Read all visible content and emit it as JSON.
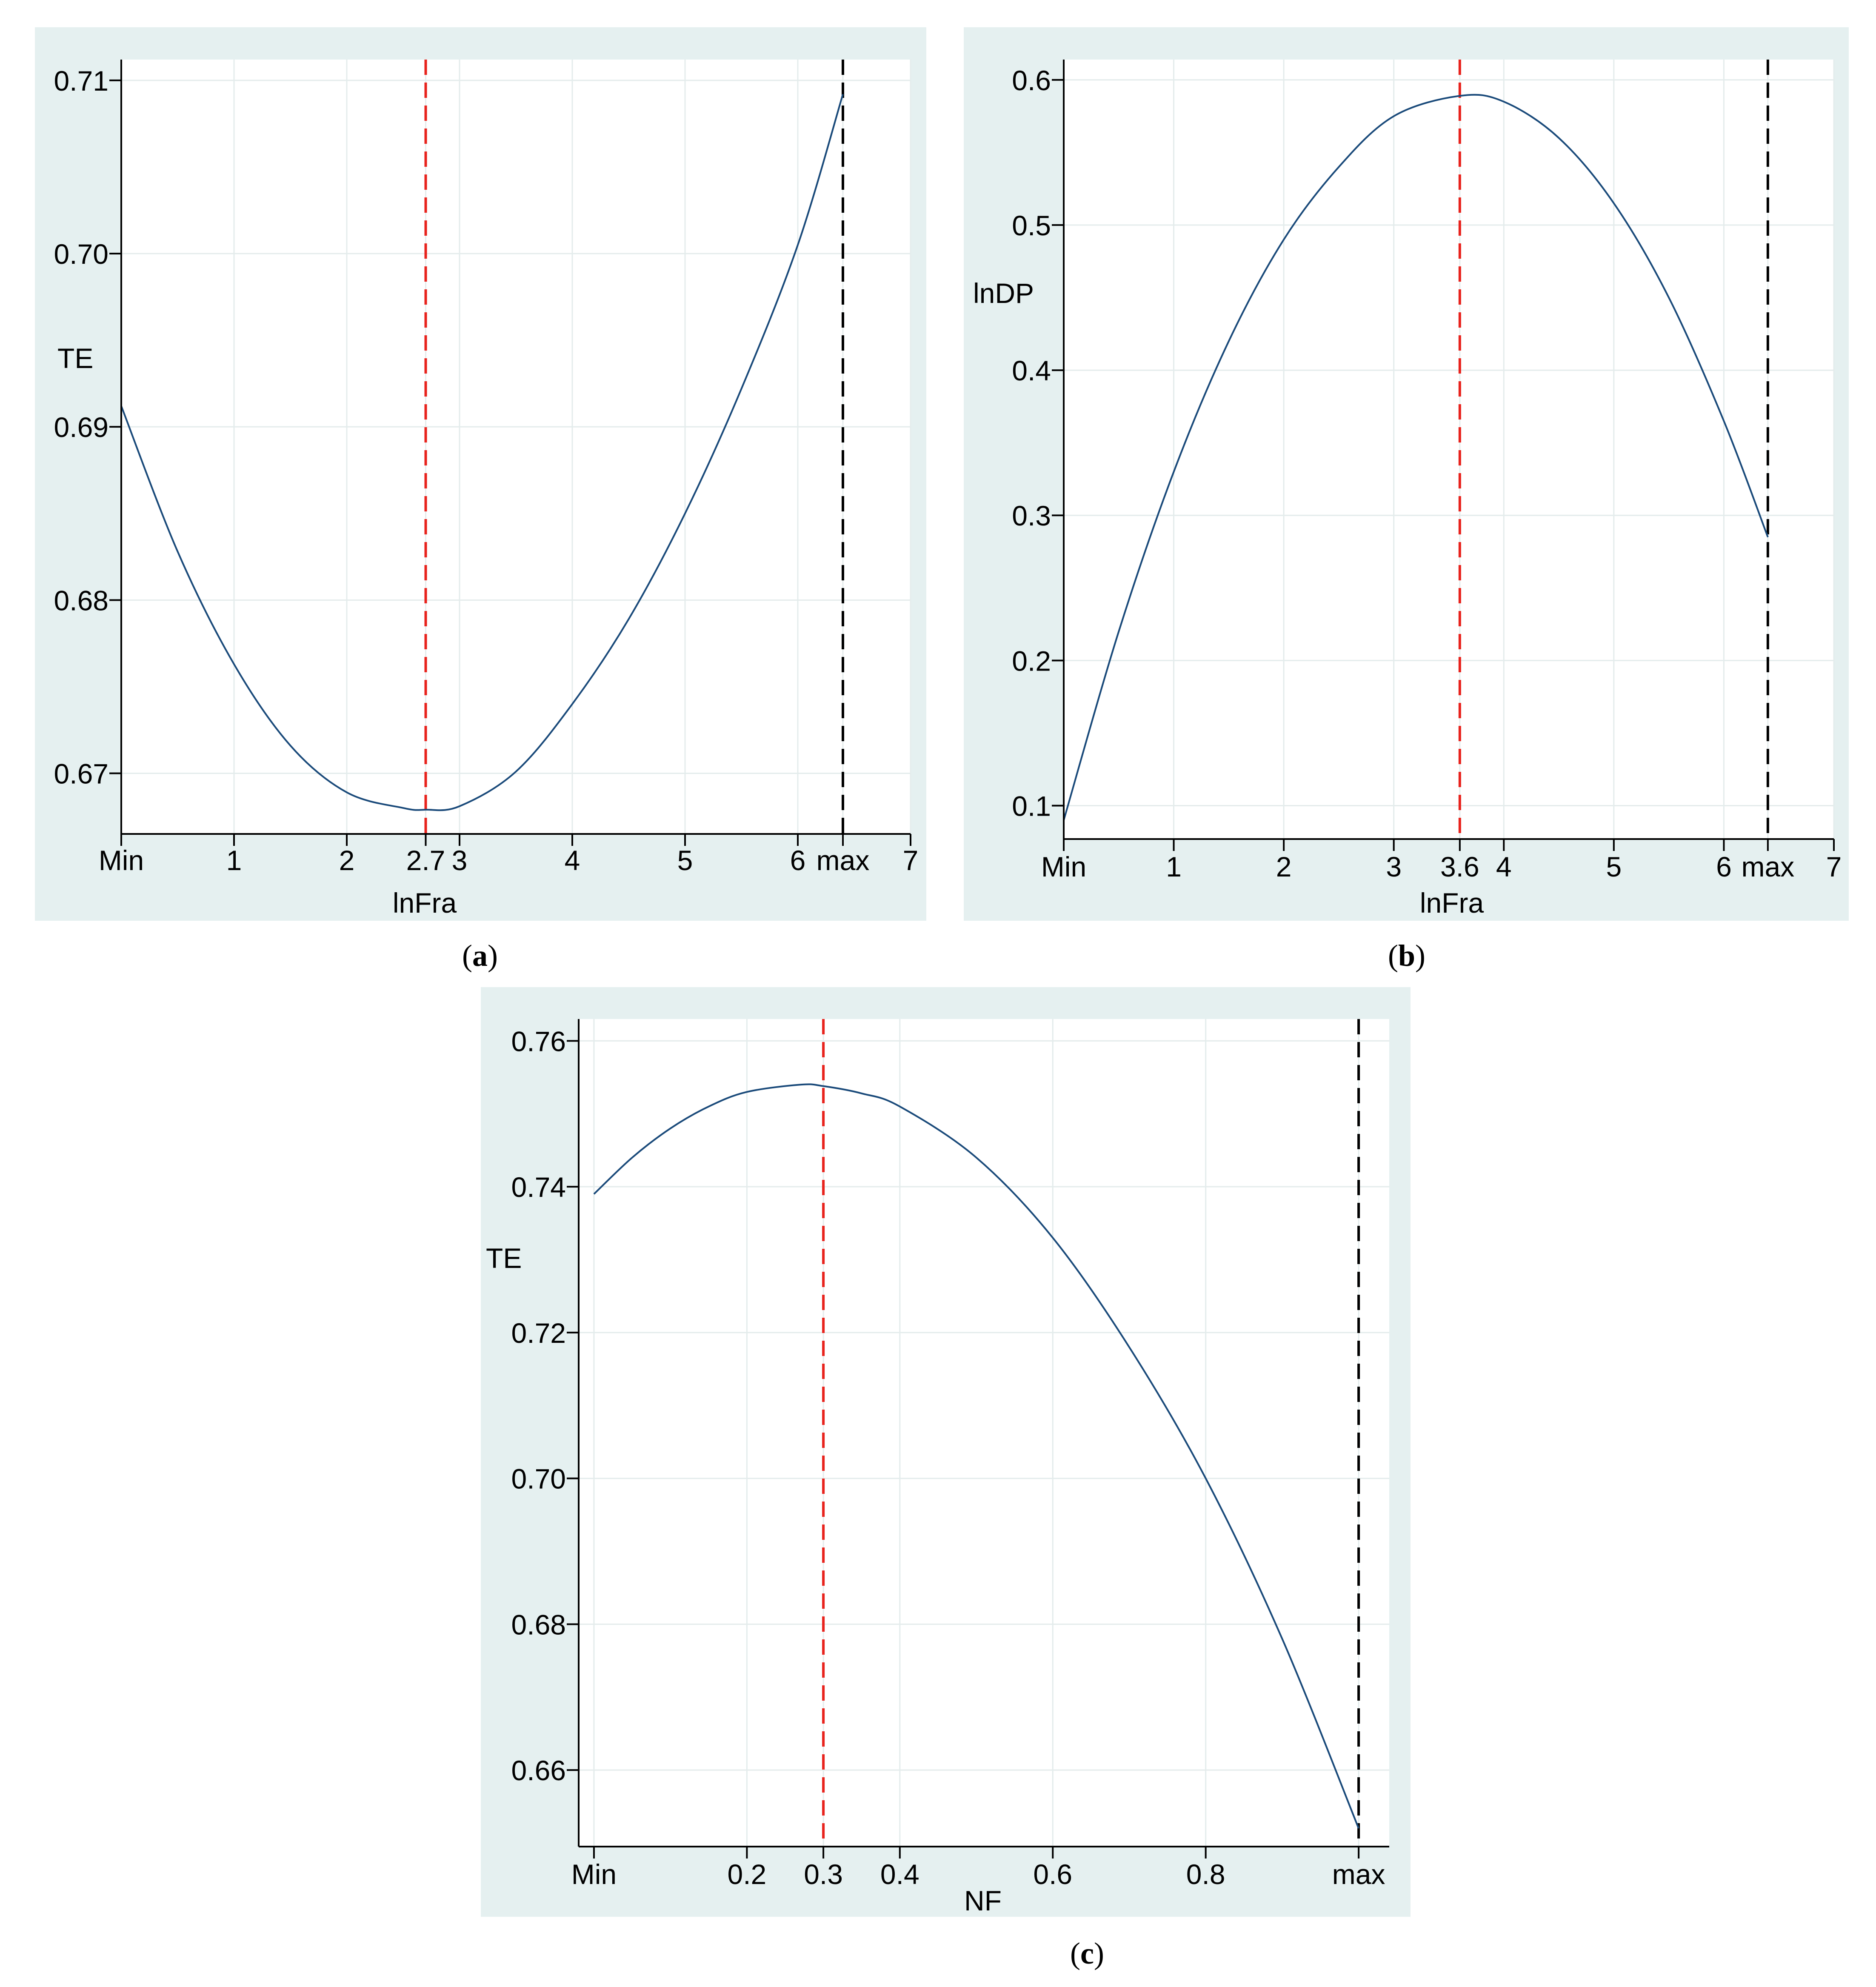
{
  "chart_data": [
    {
      "id": "a",
      "type": "line",
      "caption": "(a)",
      "caption_letter": "a",
      "xlabel": "lnFra",
      "ylabel": "TE",
      "xlim": [
        0,
        7
      ],
      "ylim": [
        0.6665,
        0.7112
      ],
      "xticks": [
        {
          "value": 0,
          "label": "Min"
        },
        {
          "value": 1,
          "label": "1"
        },
        {
          "value": 2,
          "label": "2"
        },
        {
          "value": 2.7,
          "label": "2.7"
        },
        {
          "value": 3,
          "label": "3"
        },
        {
          "value": 4,
          "label": "4"
        },
        {
          "value": 5,
          "label": "5"
        },
        {
          "value": 6,
          "label": "6"
        },
        {
          "value": 6.4,
          "label": "max"
        },
        {
          "value": 7,
          "label": "7"
        }
      ],
      "yticks": [
        {
          "value": 0.67,
          "label": "0.67"
        },
        {
          "value": 0.68,
          "label": "0.68"
        },
        {
          "value": 0.69,
          "label": "0.69"
        },
        {
          "value": 0.7,
          "label": "0.70"
        },
        {
          "value": 0.71,
          "label": "0.71"
        }
      ],
      "grid": true,
      "vlines": [
        {
          "x": 2.7,
          "color": "#e8231d",
          "style": "dashed"
        },
        {
          "x": 6.4,
          "color": "#000000",
          "style": "dashed"
        }
      ],
      "series": [
        {
          "values": [
            [
              0.0,
              0.6912
            ],
            [
              0.5,
              0.6828
            ],
            [
              1.0,
              0.6763
            ],
            [
              1.5,
              0.6716
            ],
            [
              2.0,
              0.6689
            ],
            [
              2.5,
              0.668
            ],
            [
              2.7,
              0.6679
            ],
            [
              3.0,
              0.6681
            ],
            [
              3.5,
              0.6701
            ],
            [
              4.0,
              0.674
            ],
            [
              4.5,
              0.6789
            ],
            [
              5.0,
              0.685
            ],
            [
              5.5,
              0.6922
            ],
            [
              6.0,
              0.7005
            ],
            [
              6.4,
              0.7092
            ]
          ]
        }
      ]
    },
    {
      "id": "b",
      "type": "line",
      "caption": "(b)",
      "caption_letter": "b",
      "xlabel": "lnFra",
      "ylabel": "lnDP",
      "xlim": [
        0,
        7
      ],
      "ylim": [
        0.077,
        0.614
      ],
      "xticks": [
        {
          "value": 0,
          "label": "Min"
        },
        {
          "value": 1,
          "label": "1"
        },
        {
          "value": 2,
          "label": "2"
        },
        {
          "value": 3,
          "label": "3"
        },
        {
          "value": 3.6,
          "label": "3.6"
        },
        {
          "value": 4,
          "label": "4"
        },
        {
          "value": 5,
          "label": "5"
        },
        {
          "value": 6,
          "label": "6"
        },
        {
          "value": 6.4,
          "label": "max"
        },
        {
          "value": 7,
          "label": "7"
        }
      ],
      "yticks": [
        {
          "value": 0.1,
          "label": "0.1"
        },
        {
          "value": 0.2,
          "label": "0.2"
        },
        {
          "value": 0.3,
          "label": "0.3"
        },
        {
          "value": 0.4,
          "label": "0.4"
        },
        {
          "value": 0.5,
          "label": "0.5"
        },
        {
          "value": 0.6,
          "label": "0.6"
        }
      ],
      "grid": true,
      "vlines": [
        {
          "x": 3.6,
          "color": "#e8231d",
          "style": "dashed"
        },
        {
          "x": 6.4,
          "color": "#000000",
          "style": "dashed"
        }
      ],
      "series": [
        {
          "values": [
            [
              0.0,
              0.09
            ],
            [
              0.5,
              0.22
            ],
            [
              1.0,
              0.33
            ],
            [
              1.5,
              0.42
            ],
            [
              2.0,
              0.49
            ],
            [
              2.5,
              0.54
            ],
            [
              3.0,
              0.575
            ],
            [
              3.6,
              0.589
            ],
            [
              4.0,
              0.585
            ],
            [
              4.5,
              0.56
            ],
            [
              5.0,
              0.515
            ],
            [
              5.5,
              0.45
            ],
            [
              6.0,
              0.365
            ],
            [
              6.4,
              0.285
            ]
          ]
        }
      ]
    },
    {
      "id": "c",
      "type": "line",
      "caption": "(c)",
      "caption_letter": "c",
      "xlabel": "NF",
      "ylabel": "TE",
      "xlim": [
        -0.02,
        1.04
      ],
      "ylim": [
        0.6495,
        0.763
      ],
      "xticks": [
        {
          "value": 0,
          "label": "Min"
        },
        {
          "value": 0.2,
          "label": "0.2"
        },
        {
          "value": 0.3,
          "label": "0.3"
        },
        {
          "value": 0.4,
          "label": "0.4"
        },
        {
          "value": 0.6,
          "label": "0.6"
        },
        {
          "value": 0.8,
          "label": "0.8"
        },
        {
          "value": 1.0,
          "label": "max"
        }
      ],
      "yticks": [
        {
          "value": 0.66,
          "label": "0.66"
        },
        {
          "value": 0.68,
          "label": "0.68"
        },
        {
          "value": 0.7,
          "label": "0.70"
        },
        {
          "value": 0.72,
          "label": "0.72"
        },
        {
          "value": 0.74,
          "label": "0.74"
        },
        {
          "value": 0.76,
          "label": "0.76"
        }
      ],
      "grid": true,
      "vlines": [
        {
          "x": 0.3,
          "color": "#e8231d",
          "style": "dashed"
        },
        {
          "x": 1.0,
          "color": "#000000",
          "style": "dashed"
        }
      ],
      "series": [
        {
          "values": [
            [
              0.0,
              0.739
            ],
            [
              0.05,
              0.744
            ],
            [
              0.1,
              0.748
            ],
            [
              0.15,
              0.751
            ],
            [
              0.2,
              0.753
            ],
            [
              0.27,
              0.754
            ],
            [
              0.3,
              0.7538
            ],
            [
              0.35,
              0.7528
            ],
            [
              0.4,
              0.751
            ],
            [
              0.5,
              0.744
            ],
            [
              0.6,
              0.733
            ],
            [
              0.7,
              0.718
            ],
            [
              0.8,
              0.7
            ],
            [
              0.9,
              0.678
            ],
            [
              1.0,
              0.652
            ]
          ]
        }
      ]
    }
  ]
}
